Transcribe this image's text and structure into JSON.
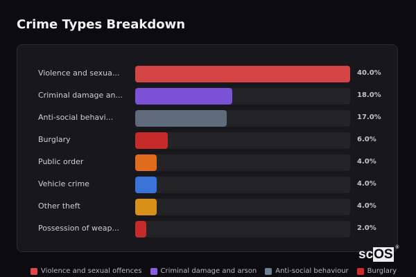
{
  "title": "Crime Types Breakdown",
  "watermark": {
    "prefix": "sc",
    "boxed": "OS",
    "reg": "®"
  },
  "chart_data": {
    "type": "bar",
    "orientation": "horizontal",
    "title": "Crime Types Breakdown",
    "categories": [
      "Violence and sexual offences",
      "Criminal damage and arson",
      "Anti-social behaviour",
      "Burglary",
      "Public order",
      "Vehicle crime",
      "Other theft",
      "Possession of weapons"
    ],
    "display_labels": [
      "Violence and sexua...",
      "Criminal damage an...",
      "Anti-social behavi...",
      "Burglary",
      "Public order",
      "Vehicle crime",
      "Other theft",
      "Possession of weap..."
    ],
    "values": [
      40.0,
      18.0,
      17.0,
      6.0,
      4.0,
      4.0,
      4.0,
      2.0
    ],
    "value_labels": [
      "40.0%",
      "18.0%",
      "17.0%",
      "6.0%",
      "4.0%",
      "4.0%",
      "4.0%",
      "2.0%"
    ],
    "colors": [
      "#d64545",
      "#7b52d6",
      "#5f6b7d",
      "#c62a2a",
      "#e06b1f",
      "#3a74d8",
      "#d8901a",
      "#c62a2a"
    ],
    "xlim": [
      0,
      40
    ],
    "unit": "%",
    "grid": false,
    "legend": {
      "position": "bottom",
      "entries": [
        {
          "label": "Violence and sexual offences",
          "color": "#e0474a"
        },
        {
          "label": "Criminal damage and arson",
          "color": "#8a5be8"
        },
        {
          "label": "Anti-social behaviour",
          "color": "#6f7f96"
        },
        {
          "label": "Burglary",
          "color": "#d9272b"
        }
      ]
    }
  }
}
